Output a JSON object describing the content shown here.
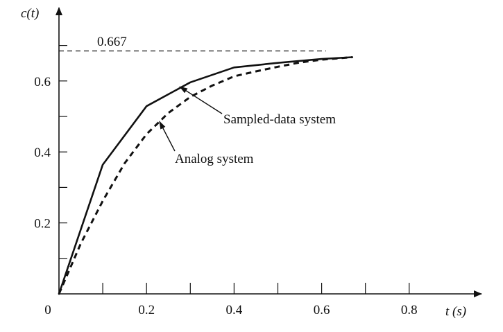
{
  "chart_data": {
    "type": "line",
    "title": "",
    "xlabel": "t (s)",
    "ylabel": "c(t)",
    "xlim": [
      0,
      0.9
    ],
    "ylim": [
      0,
      0.8
    ],
    "grid": false,
    "x_ticks": [
      {
        "value": 0,
        "label": "0"
      },
      {
        "value": 0.2,
        "label": "0.2"
      },
      {
        "value": 0.4,
        "label": "0.4"
      },
      {
        "value": 0.6,
        "label": "0.6"
      },
      {
        "value": 0.8,
        "label": "0.8"
      }
    ],
    "x_minor_ticks": [
      0.1,
      0.3,
      0.5,
      0.7
    ],
    "y_ticks": [
      {
        "value": 0.2,
        "label": "0.2"
      },
      {
        "value": 0.4,
        "label": "0.4"
      },
      {
        "value": 0.6,
        "label": "0.6"
      }
    ],
    "y_minor_ticks": [
      0.1,
      0.3,
      0.5,
      0.7
    ],
    "reference_line": {
      "y": 0.667,
      "label": "0.667",
      "style": "dashed"
    },
    "series": [
      {
        "style": "solid",
        "x": [
          0,
          0.1,
          0.2,
          0.3,
          0.4,
          0.5,
          0.6,
          0.67
        ],
        "y": [
          0,
          0.364,
          0.529,
          0.596,
          0.638,
          0.651,
          0.662,
          0.667
        ]
      },
      {
        "style": "dashed",
        "x": [
          0,
          0.05,
          0.1,
          0.15,
          0.2,
          0.25,
          0.3,
          0.35,
          0.4,
          0.45,
          0.5,
          0.55,
          0.6,
          0.67
        ],
        "y": [
          0,
          0.142,
          0.262,
          0.368,
          0.45,
          0.51,
          0.555,
          0.587,
          0.613,
          0.627,
          0.64,
          0.652,
          0.66,
          0.667
        ]
      }
    ],
    "annotations": [
      {
        "text": "Sampled-data system",
        "points_to": {
          "x": 0.26,
          "y": 0.58
        }
      },
      {
        "text": "Analog system",
        "points_to": {
          "x": 0.22,
          "y": 0.49
        }
      }
    ]
  }
}
